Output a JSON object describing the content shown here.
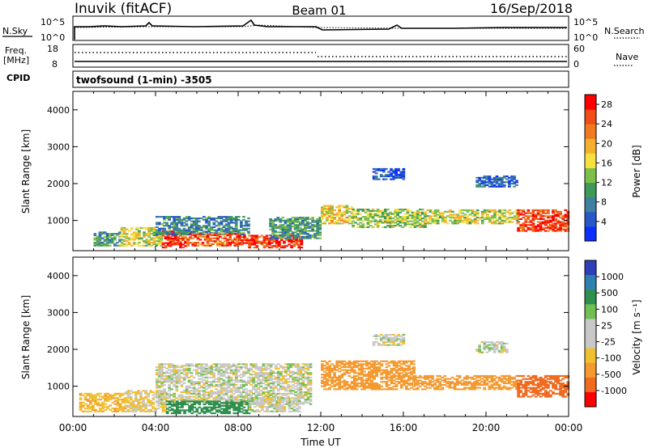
{
  "header": {
    "title": "Inuvik (fitACF)",
    "beam": "Beam 01",
    "date": "16/Sep/2018"
  },
  "top_panels": {
    "nsky_label": "N.Sky",
    "nsearch_label": "N.Search",
    "noise_ticks_left": [
      "10^5",
      "10^0"
    ],
    "noise_ticks_right": [
      "10^5",
      "10^0"
    ],
    "freq_label": "Freq.",
    "freq_unit": "[MHz]",
    "freq_ticks": [
      "18",
      "8"
    ],
    "nave_label": "Nave",
    "nave_ticks": [
      "60",
      "0"
    ],
    "cpid_label": "CPID",
    "cpid_text": "twofsound (1-min) -3505"
  },
  "colors": {
    "power_scale": [
      "#0b2fff",
      "#2a58c8",
      "#3f7fa0",
      "#3f9a5a",
      "#7dbf4a",
      "#f7e040",
      "#f5b030",
      "#f07a20",
      "#f04d18",
      "#ff0000"
    ],
    "velocity_scale": [
      "#2f3fb8",
      "#2f7fb0",
      "#2f8f4f",
      "#6fc050",
      "#c8c8c8",
      "#c8c8c8",
      "#f0c030",
      "#f59a30",
      "#f06a20",
      "#ff0000"
    ]
  },
  "chart_data": [
    {
      "type": "heatmap",
      "panel": "power",
      "ylabel": "Slant Range [km]",
      "y_ticks": [
        "1000",
        "2000",
        "3000",
        "4000"
      ],
      "ylim": [
        180,
        4500
      ],
      "xlim": [
        0,
        24
      ],
      "x_ticks": [
        "00:00",
        "04:00",
        "08:00",
        "12:00",
        "16:00",
        "20:00",
        "00:00"
      ],
      "colorbar_label": "Power [dB]",
      "colorbar_ticks": [
        "4",
        "8",
        "12",
        "16",
        "20",
        "24",
        "28"
      ],
      "colorbar_range": [
        0,
        30
      ],
      "bands": [
        {
          "t0": 1.0,
          "t1": 2.3,
          "r0": 300,
          "r1": 700,
          "level": 10
        },
        {
          "t0": 2.3,
          "t1": 4.3,
          "r0": 300,
          "r1": 800,
          "level": 16
        },
        {
          "t0": 4.3,
          "t1": 5.5,
          "r0": 250,
          "r1": 700,
          "level": 27
        },
        {
          "t0": 4.0,
          "t1": 8.5,
          "r0": 600,
          "r1": 1100,
          "level": 8
        },
        {
          "t0": 5.5,
          "t1": 8.0,
          "r0": 300,
          "r1": 650,
          "level": 24
        },
        {
          "t0": 8.0,
          "t1": 11.0,
          "r0": 250,
          "r1": 600,
          "level": 27
        },
        {
          "t0": 9.5,
          "t1": 12.0,
          "r0": 500,
          "r1": 1100,
          "level": 10
        },
        {
          "t0": 12.0,
          "t1": 13.5,
          "r0": 900,
          "r1": 1400,
          "level": 18
        },
        {
          "t0": 13.5,
          "t1": 17.0,
          "r0": 800,
          "r1": 1300,
          "level": 14
        },
        {
          "t0": 17.0,
          "t1": 21.5,
          "r0": 900,
          "r1": 1300,
          "level": 16
        },
        {
          "t0": 21.5,
          "t1": 24.0,
          "r0": 700,
          "r1": 1300,
          "level": 26
        },
        {
          "t0": 19.5,
          "t1": 21.5,
          "r0": 1900,
          "r1": 2200,
          "level": 6
        },
        {
          "t0": 14.5,
          "t1": 16.0,
          "r0": 2100,
          "r1": 2400,
          "level": 4
        }
      ]
    },
    {
      "type": "heatmap",
      "panel": "velocity",
      "ylabel": "Slant Range [km]",
      "y_ticks": [
        "1000",
        "2000",
        "3000",
        "4000"
      ],
      "ylim": [
        180,
        4500
      ],
      "xlim": [
        0,
        24
      ],
      "x_ticks": [
        "00:00",
        "04:00",
        "08:00",
        "12:00",
        "16:00",
        "20:00",
        "00:00"
      ],
      "xlabel": "Time UT",
      "colorbar_label": "Velocity [m s⁻¹]",
      "colorbar_ticks": [
        "1000",
        "500",
        "100",
        "25",
        "-25",
        "-100",
        "-500",
        "-1000"
      ],
      "bands": [
        {
          "t0": 0.3,
          "t1": 2.5,
          "r0": 300,
          "r1": 800,
          "level": -80
        },
        {
          "t0": 2.5,
          "t1": 4.5,
          "r0": 300,
          "r1": 900,
          "level": -40
        },
        {
          "t0": 4.0,
          "t1": 11.5,
          "r0": 500,
          "r1": 1600,
          "level": 0
        },
        {
          "t0": 4.5,
          "t1": 8.5,
          "r0": 250,
          "r1": 600,
          "level": 150
        },
        {
          "t0": 8.5,
          "t1": 11.0,
          "r0": 300,
          "r1": 700,
          "level": 0
        },
        {
          "t0": 12.0,
          "t1": 16.5,
          "r0": 900,
          "r1": 1700,
          "level": -300
        },
        {
          "t0": 16.5,
          "t1": 21.5,
          "r0": 900,
          "r1": 1300,
          "level": -400
        },
        {
          "t0": 21.5,
          "t1": 24.0,
          "r0": 700,
          "r1": 1300,
          "level": -900
        },
        {
          "t0": 19.5,
          "t1": 21.0,
          "r0": 1900,
          "r1": 2200,
          "level": 0
        },
        {
          "t0": 14.5,
          "t1": 16.0,
          "r0": 2100,
          "r1": 2400,
          "level": 0
        }
      ]
    }
  ]
}
